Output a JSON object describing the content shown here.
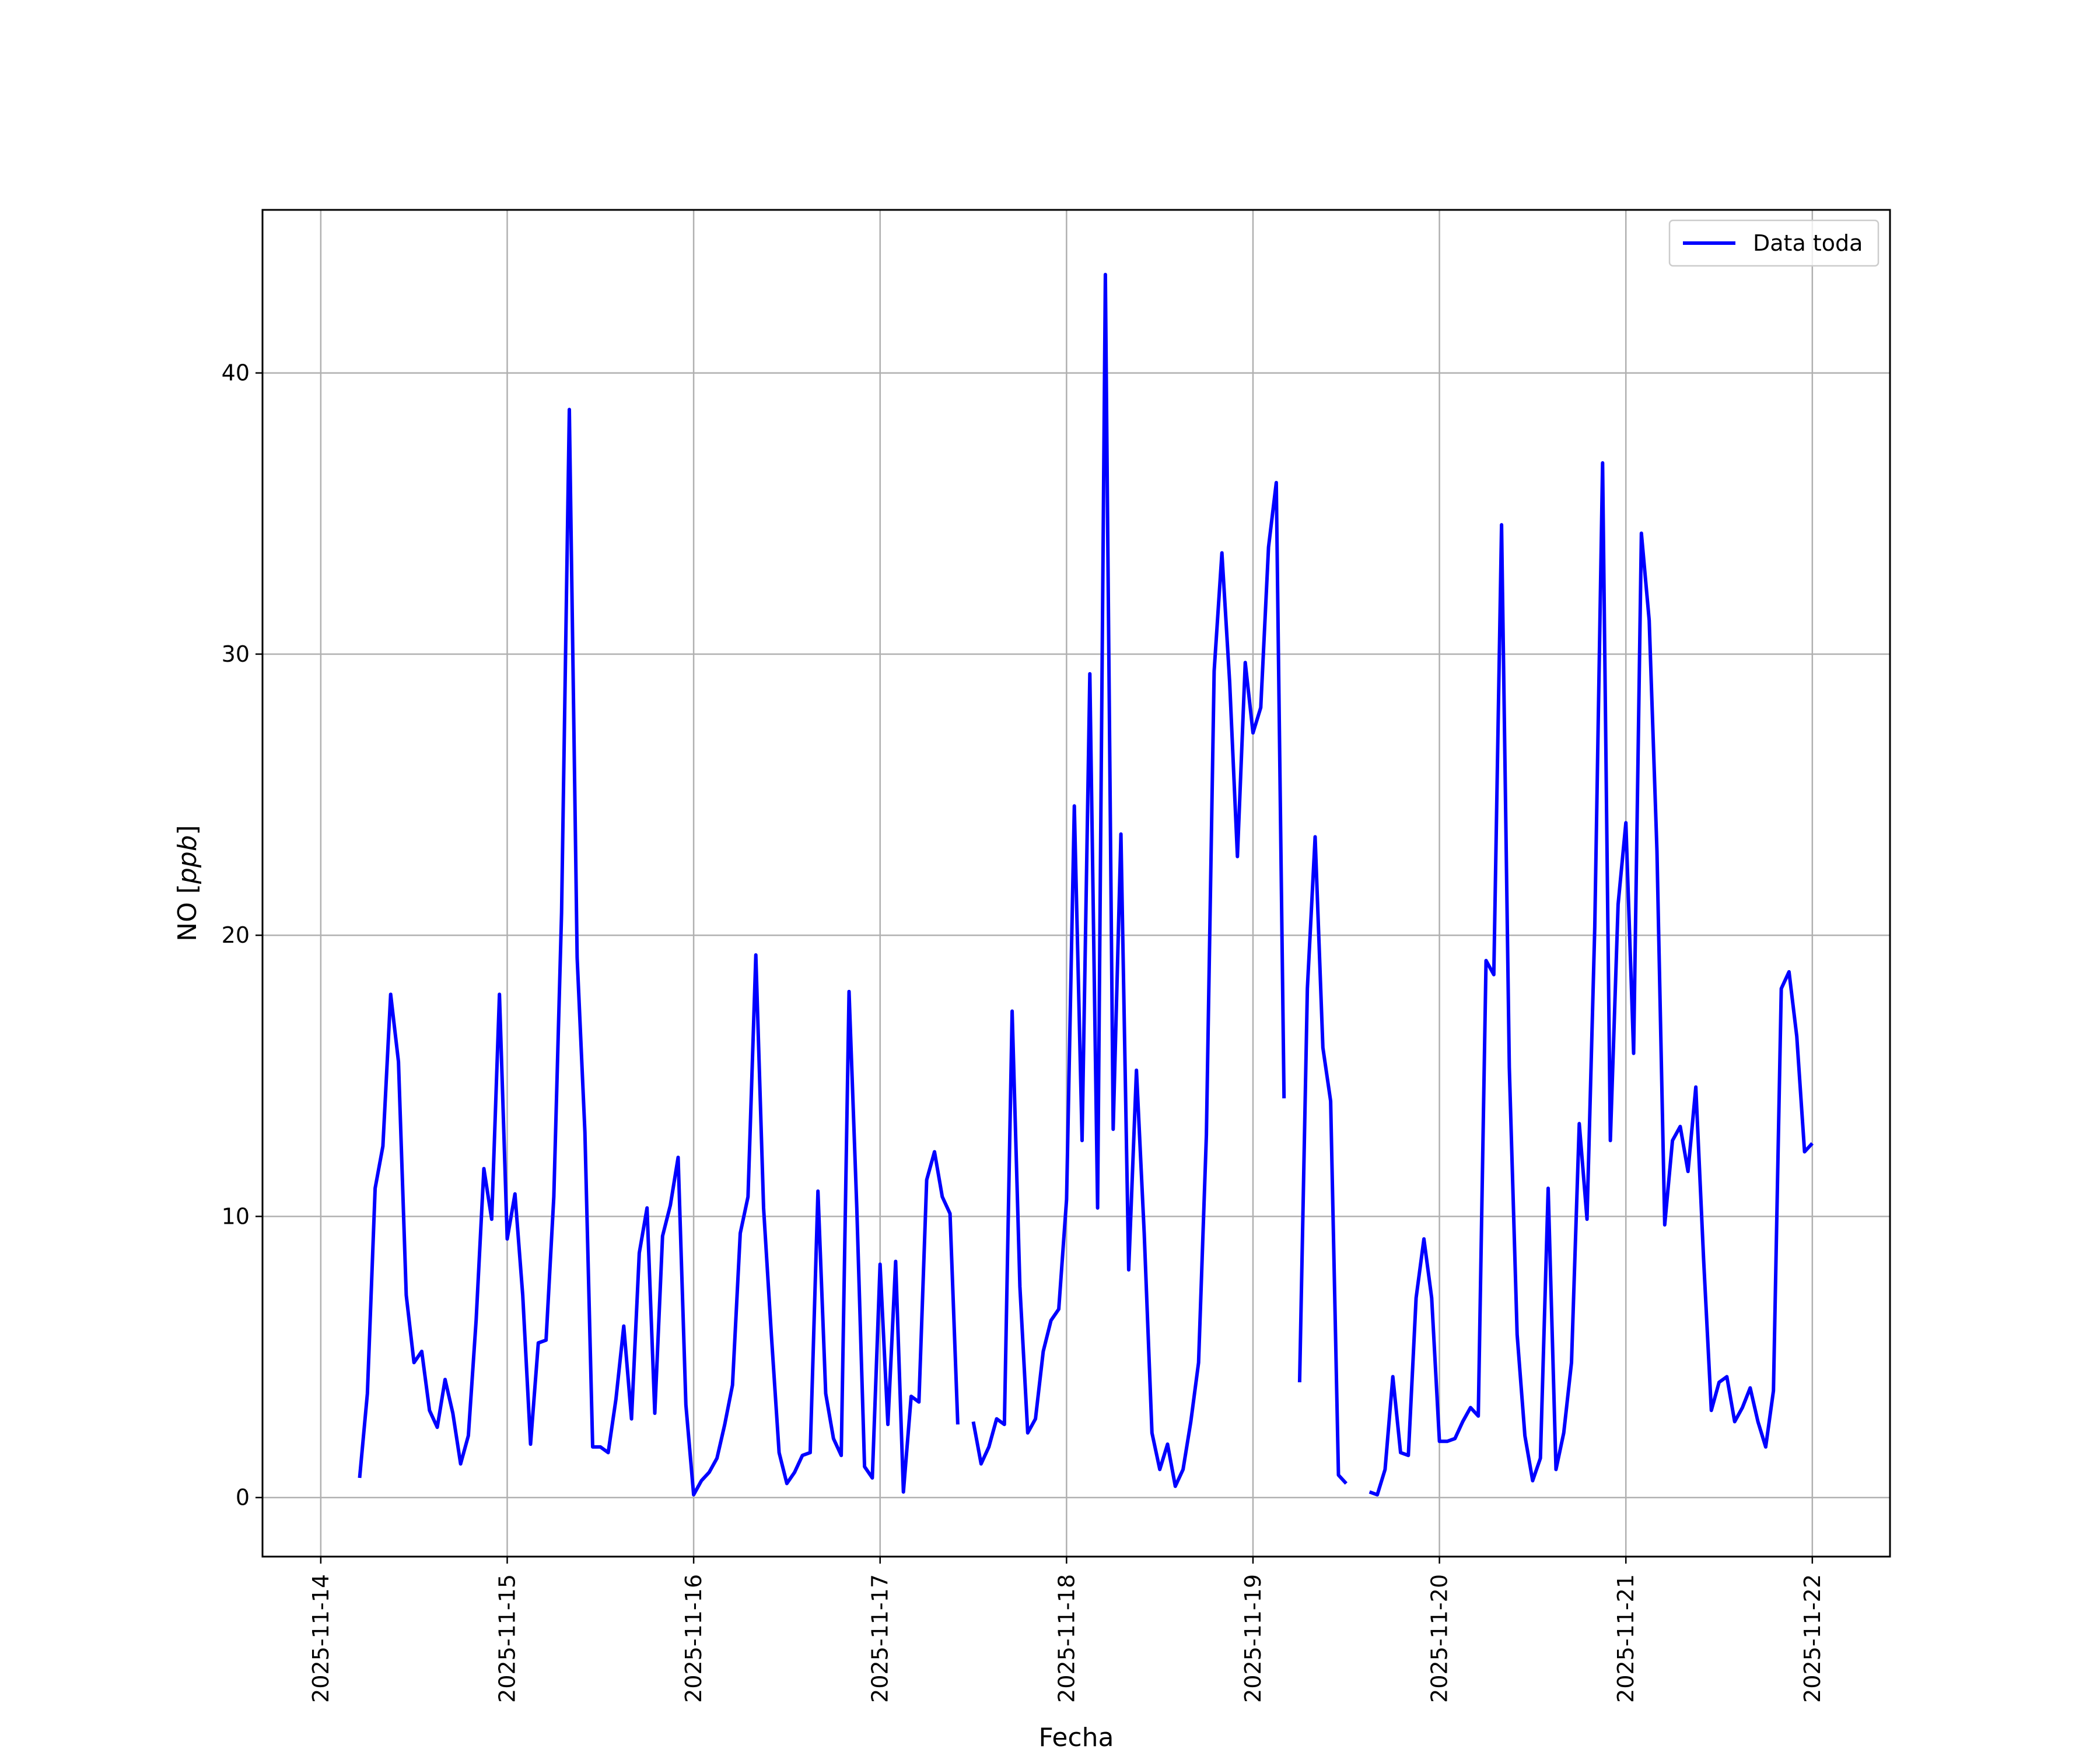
{
  "chart_data": {
    "type": "line",
    "xlabel": "Fecha",
    "ylabel": "NO [ppb]",
    "ylabel_main": "NO [",
    "ylabel_italic": "ppb",
    "ylabel_close": "]",
    "xlim": [
      "2025-11-13T16:30",
      "2025-11-22T10:00"
    ],
    "ylim": [
      -2.1,
      45.8
    ],
    "x_ticks": [
      "2025-11-14",
      "2025-11-15",
      "2025-11-16",
      "2025-11-17",
      "2025-11-18",
      "2025-11-19",
      "2025-11-20",
      "2025-11-21",
      "2025-11-22"
    ],
    "y_ticks": [
      0,
      10,
      20,
      30,
      40
    ],
    "grid": true,
    "legend_position": "top-right",
    "series": [
      {
        "name": "Data toda",
        "color": "#0000ff",
        "segments": [
          [
            [
              "2025-11-14T05:00",
              0.7
            ],
            [
              "2025-11-14T06:00",
              3.7
            ],
            [
              "2025-11-14T07:00",
              11.0
            ],
            [
              "2025-11-14T08:00",
              12.5
            ],
            [
              "2025-11-14T09:00",
              17.9
            ],
            [
              "2025-11-14T10:00",
              15.5
            ],
            [
              "2025-11-14T11:00",
              7.2
            ],
            [
              "2025-11-14T12:00",
              4.8
            ],
            [
              "2025-11-14T13:00",
              5.2
            ],
            [
              "2025-11-14T14:00",
              3.1
            ],
            [
              "2025-11-14T15:00",
              2.5
            ],
            [
              "2025-11-14T16:00",
              4.2
            ],
            [
              "2025-11-14T17:00",
              3.0
            ],
            [
              "2025-11-14T18:00",
              1.2
            ],
            [
              "2025-11-14T19:00",
              2.2
            ],
            [
              "2025-11-14T20:00",
              6.3
            ],
            [
              "2025-11-14T21:00",
              11.7
            ],
            [
              "2025-11-14T22:00",
              9.9
            ],
            [
              "2025-11-14T23:00",
              17.9
            ],
            [
              "2025-11-15T00:00",
              9.2
            ],
            [
              "2025-11-15T01:00",
              10.8
            ],
            [
              "2025-11-15T02:00",
              7.2
            ],
            [
              "2025-11-15T03:00",
              1.9
            ],
            [
              "2025-11-15T04:00",
              5.5
            ],
            [
              "2025-11-15T05:00",
              5.6
            ],
            [
              "2025-11-15T06:00",
              10.7
            ],
            [
              "2025-11-15T07:00",
              20.8
            ],
            [
              "2025-11-15T08:00",
              38.7
            ],
            [
              "2025-11-15T09:00",
              19.2
            ],
            [
              "2025-11-15T10:00",
              13.0
            ],
            [
              "2025-11-15T11:00",
              1.8
            ],
            [
              "2025-11-15T12:00",
              1.8
            ],
            [
              "2025-11-15T13:00",
              1.6
            ],
            [
              "2025-11-15T14:00",
              3.5
            ],
            [
              "2025-11-15T15:00",
              6.1
            ],
            [
              "2025-11-15T16:00",
              2.8
            ],
            [
              "2025-11-15T17:00",
              8.7
            ],
            [
              "2025-11-15T18:00",
              10.3
            ],
            [
              "2025-11-15T19:00",
              3.0
            ],
            [
              "2025-11-15T20:00",
              9.3
            ],
            [
              "2025-11-15T21:00",
              10.4
            ],
            [
              "2025-11-15T22:00",
              12.1
            ],
            [
              "2025-11-15T23:00",
              3.3
            ],
            [
              "2025-11-16T00:00",
              0.1
            ],
            [
              "2025-11-16T01:00",
              0.6
            ],
            [
              "2025-11-16T02:00",
              0.9
            ],
            [
              "2025-11-16T03:00",
              1.4
            ],
            [
              "2025-11-16T04:00",
              2.6
            ],
            [
              "2025-11-16T05:00",
              4.0
            ],
            [
              "2025-11-16T06:00",
              9.4
            ],
            [
              "2025-11-16T07:00",
              10.7
            ],
            [
              "2025-11-16T08:00",
              19.3
            ],
            [
              "2025-11-16T09:00",
              10.3
            ],
            [
              "2025-11-16T10:00",
              5.8
            ],
            [
              "2025-11-16T11:00",
              1.6
            ],
            [
              "2025-11-16T12:00",
              0.5
            ],
            [
              "2025-11-16T13:00",
              0.9
            ],
            [
              "2025-11-16T14:00",
              1.5
            ],
            [
              "2025-11-16T15:00",
              1.6
            ],
            [
              "2025-11-16T16:00",
              10.9
            ],
            [
              "2025-11-16T17:00",
              3.7
            ],
            [
              "2025-11-16T18:00",
              2.1
            ],
            [
              "2025-11-16T19:00",
              1.5
            ],
            [
              "2025-11-16T20:00",
              18.0
            ],
            [
              "2025-11-16T21:00",
              10.3
            ],
            [
              "2025-11-16T22:00",
              1.1
            ],
            [
              "2025-11-16T23:00",
              0.7
            ],
            [
              "2025-11-17T00:00",
              8.3
            ],
            [
              "2025-11-17T01:00",
              2.6
            ],
            [
              "2025-11-17T02:00",
              8.4
            ],
            [
              "2025-11-17T03:00",
              0.2
            ],
            [
              "2025-11-17T04:00",
              3.6
            ],
            [
              "2025-11-17T05:00",
              3.4
            ],
            [
              "2025-11-17T06:00",
              11.3
            ],
            [
              "2025-11-17T07:00",
              12.3
            ],
            [
              "2025-11-17T08:00",
              10.7
            ],
            [
              "2025-11-17T09:00",
              10.1
            ],
            [
              "2025-11-17T10:00",
              2.6
            ]
          ],
          [
            [
              "2025-11-17T12:00",
              2.7
            ],
            [
              "2025-11-17T13:00",
              1.2
            ],
            [
              "2025-11-17T14:00",
              1.8
            ],
            [
              "2025-11-17T15:00",
              2.8
            ],
            [
              "2025-11-17T16:00",
              2.6
            ],
            [
              "2025-11-17T17:00",
              17.3
            ],
            [
              "2025-11-17T18:00",
              7.5
            ],
            [
              "2025-11-17T19:00",
              2.3
            ],
            [
              "2025-11-17T20:00",
              2.8
            ],
            [
              "2025-11-17T21:00",
              5.2
            ],
            [
              "2025-11-17T22:00",
              6.3
            ],
            [
              "2025-11-17T23:00",
              6.7
            ],
            [
              "2025-11-18T00:00",
              10.6
            ],
            [
              "2025-11-18T01:00",
              24.6
            ],
            [
              "2025-11-18T02:00",
              12.7
            ],
            [
              "2025-11-18T03:00",
              29.3
            ],
            [
              "2025-11-18T04:00",
              10.3
            ],
            [
              "2025-11-18T05:00",
              43.5
            ],
            [
              "2025-11-18T06:00",
              13.1
            ],
            [
              "2025-11-18T07:00",
              23.6
            ],
            [
              "2025-11-18T08:00",
              8.1
            ],
            [
              "2025-11-18T09:00",
              15.2
            ],
            [
              "2025-11-18T10:00",
              9.4
            ],
            [
              "2025-11-18T11:00",
              2.3
            ],
            [
              "2025-11-18T12:00",
              1.0
            ],
            [
              "2025-11-18T13:00",
              1.9
            ],
            [
              "2025-11-18T14:00",
              0.4
            ],
            [
              "2025-11-18T15:00",
              1.0
            ],
            [
              "2025-11-18T16:00",
              2.7
            ],
            [
              "2025-11-18T17:00",
              4.8
            ],
            [
              "2025-11-18T18:00",
              12.9
            ],
            [
              "2025-11-18T19:00",
              29.4
            ],
            [
              "2025-11-18T20:00",
              33.6
            ],
            [
              "2025-11-18T21:00",
              29.0
            ],
            [
              "2025-11-18T22:00",
              22.8
            ],
            [
              "2025-11-18T23:00",
              29.7
            ],
            [
              "2025-11-19T00:00",
              27.2
            ],
            [
              "2025-11-19T01:00",
              28.1
            ],
            [
              "2025-11-19T02:00",
              33.8
            ],
            [
              "2025-11-19T03:00",
              36.1
            ],
            [
              "2025-11-19T04:00",
              14.2
            ]
          ],
          [
            [
              "2025-11-19T06:00",
              4.1
            ],
            [
              "2025-11-19T07:00",
              18.1
            ],
            [
              "2025-11-19T08:00",
              23.5
            ],
            [
              "2025-11-19T09:00",
              16.0
            ],
            [
              "2025-11-19T10:00",
              14.1
            ],
            [
              "2025-11-19T11:00",
              0.8
            ],
            [
              "2025-11-19T12:00",
              0.5
            ]
          ],
          [
            [
              "2025-11-19T15:00",
              0.2
            ],
            [
              "2025-11-19T16:00",
              0.1
            ],
            [
              "2025-11-19T17:00",
              1.0
            ],
            [
              "2025-11-19T18:00",
              4.3
            ],
            [
              "2025-11-19T19:00",
              1.6
            ],
            [
              "2025-11-19T20:00",
              1.5
            ],
            [
              "2025-11-19T21:00",
              7.1
            ],
            [
              "2025-11-19T22:00",
              9.2
            ],
            [
              "2025-11-19T23:00",
              7.1
            ],
            [
              "2025-11-20T00:00",
              2.0
            ],
            [
              "2025-11-20T01:00",
              2.0
            ],
            [
              "2025-11-20T02:00",
              2.1
            ],
            [
              "2025-11-20T03:00",
              2.7
            ],
            [
              "2025-11-20T04:00",
              3.2
            ],
            [
              "2025-11-20T05:00",
              2.9
            ],
            [
              "2025-11-20T06:00",
              19.1
            ],
            [
              "2025-11-20T07:00",
              18.6
            ],
            [
              "2025-11-20T08:00",
              34.6
            ],
            [
              "2025-11-20T09:00",
              15.3
            ],
            [
              "2025-11-20T10:00",
              5.8
            ],
            [
              "2025-11-20T11:00",
              2.2
            ],
            [
              "2025-11-20T12:00",
              0.6
            ],
            [
              "2025-11-20T13:00",
              1.4
            ],
            [
              "2025-11-20T14:00",
              11.0
            ],
            [
              "2025-11-20T15:00",
              1.0
            ],
            [
              "2025-11-20T16:00",
              2.3
            ],
            [
              "2025-11-20T17:00",
              4.8
            ],
            [
              "2025-11-20T18:00",
              13.3
            ],
            [
              "2025-11-20T19:00",
              9.9
            ],
            [
              "2025-11-20T20:00",
              20.3
            ],
            [
              "2025-11-20T21:00",
              36.8
            ],
            [
              "2025-11-20T22:00",
              12.7
            ],
            [
              "2025-11-20T23:00",
              21.1
            ],
            [
              "2025-11-21T00:00",
              24.0
            ],
            [
              "2025-11-21T01:00",
              15.8
            ],
            [
              "2025-11-21T02:00",
              34.3
            ],
            [
              "2025-11-21T03:00",
              31.2
            ],
            [
              "2025-11-21T04:00",
              23.0
            ],
            [
              "2025-11-21T05:00",
              9.7
            ],
            [
              "2025-11-21T06:00",
              12.7
            ],
            [
              "2025-11-21T07:00",
              13.2
            ],
            [
              "2025-11-21T08:00",
              11.6
            ],
            [
              "2025-11-21T09:00",
              14.6
            ],
            [
              "2025-11-21T10:00",
              8.5
            ],
            [
              "2025-11-21T11:00",
              3.1
            ],
            [
              "2025-11-21T12:00",
              4.1
            ],
            [
              "2025-11-21T13:00",
              4.3
            ],
            [
              "2025-11-21T14:00",
              2.7
            ],
            [
              "2025-11-21T15:00",
              3.2
            ],
            [
              "2025-11-21T16:00",
              3.9
            ],
            [
              "2025-11-21T17:00",
              2.7
            ],
            [
              "2025-11-21T18:00",
              1.8
            ],
            [
              "2025-11-21T19:00",
              3.8
            ],
            [
              "2025-11-21T20:00",
              18.1
            ],
            [
              "2025-11-21T21:00",
              18.7
            ],
            [
              "2025-11-21T22:00",
              16.4
            ],
            [
              "2025-11-21T23:00",
              12.3
            ],
            [
              "2025-11-22T00:00",
              12.6
            ]
          ]
        ]
      }
    ]
  }
}
